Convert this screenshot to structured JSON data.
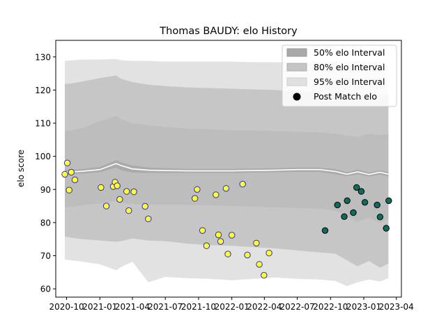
{
  "chart_data": {
    "type": "scatter",
    "title": "Thomas BAUDY: elo History",
    "xlabel": "",
    "ylabel": "elo score",
    "ylim": [
      57.5,
      135
    ],
    "xlim": [
      "2020-09-01",
      "2023-04-15"
    ],
    "yticks": [
      60,
      70,
      80,
      90,
      100,
      110,
      120,
      130
    ],
    "xticks": [
      "2020-10",
      "2021-01",
      "2021-04",
      "2021-07",
      "2021-10",
      "2022-01",
      "2022-04",
      "2022-07",
      "2022-10",
      "2023-01",
      "2023-04"
    ],
    "grid": false,
    "legend_position": "top-right",
    "legend": [
      {
        "label": "50% elo Interval",
        "color": "#a9a9a9"
      },
      {
        "label": "80% elo Interval",
        "color": "#c4c4c4"
      },
      {
        "label": "95% elo Interval",
        "color": "#e0e0e0"
      },
      {
        "label": "Post Match elo",
        "color": "#000000"
      }
    ],
    "bands": {
      "x": [
        "2020-09-26",
        "2020-10-15",
        "2020-11-15",
        "2021-01-01",
        "2021-02-15",
        "2021-03-01",
        "2021-04-01",
        "2021-05-15",
        "2021-07-01",
        "2021-09-01",
        "2021-11-01",
        "2022-01-01",
        "2022-03-01",
        "2022-05-01",
        "2022-07-01",
        "2022-09-01",
        "2022-10-15",
        "2022-11-15",
        "2022-12-15",
        "2023-01-15",
        "2023-02-15",
        "2023-03-10"
      ],
      "median": [
        95.2,
        95.3,
        95.5,
        96.0,
        97.8,
        97.2,
        96.2,
        95.8,
        95.7,
        95.6,
        95.6,
        95.6,
        95.7,
        95.8,
        96.0,
        96.0,
        95.4,
        94.6,
        95.3,
        94.5,
        95.2,
        94.6
      ],
      "p50_low": [
        94.5,
        94.7,
        94.8,
        95.2,
        96.6,
        95.8,
        95.1,
        95.0,
        95.0,
        95.0,
        95.0,
        95.0,
        95.1,
        95.2,
        95.3,
        95.3,
        94.6,
        94.0,
        94.6,
        93.9,
        94.5,
        93.9
      ],
      "p50_high": [
        96.0,
        96.0,
        96.2,
        96.8,
        98.8,
        98.2,
        97.2,
        96.6,
        96.4,
        96.2,
        96.2,
        96.2,
        96.3,
        96.4,
        96.6,
        96.6,
        96.1,
        95.2,
        96.0,
        95.1,
        95.8,
        95.2
      ],
      "p80_low": [
        84.5,
        84.8,
        85.2,
        85.8,
        86.4,
        86.0,
        85.6,
        85.4,
        85.4,
        85.3,
        85.2,
        85.0,
        84.8,
        84.6,
        84.4,
        84.2,
        83.6,
        82.0,
        80.2,
        81.6,
        79.8,
        81.2
      ],
      "p80_high": [
        107.6,
        107.8,
        108.6,
        110.6,
        112.2,
        111.2,
        110.0,
        109.4,
        108.8,
        108.4,
        108.2,
        107.8,
        107.8,
        107.6,
        107.4,
        107.2,
        106.8,
        106.2,
        105.8,
        106.8,
        106.4,
        106.8
      ],
      "p95_low": [
        75.8,
        75.4,
        75.0,
        74.6,
        74.2,
        74.4,
        75.2,
        74.6,
        74.4,
        73.6,
        73.2,
        73.0,
        72.6,
        72.2,
        71.6,
        71.0,
        70.6,
        68.6,
        66.8,
        68.4,
        66.4,
        67.6
      ],
      "p95_high": [
        121.8,
        122.0,
        122.6,
        123.6,
        124.4,
        123.4,
        122.4,
        121.6,
        121.2,
        120.8,
        120.6,
        120.4,
        120.2,
        120.0,
        119.6,
        119.4,
        119.0,
        118.6,
        118.2,
        118.8,
        118.4,
        118.6
      ],
      "p99_low": [
        68.8,
        68.6,
        68.2,
        67.4,
        65.6,
        66.6,
        68.2,
        62.0,
        63.6,
        63.2,
        63.0,
        62.6,
        63.0,
        63.4,
        63.0,
        62.8,
        62.4,
        60.8,
        62.0,
        62.8,
        62.2,
        63.2
      ],
      "p99_high": [
        128.8,
        129.0,
        129.2,
        129.2,
        129.4,
        129.0,
        128.8,
        128.8,
        128.6,
        128.6,
        128.6,
        128.6,
        128.4,
        128.4,
        128.2,
        128.2,
        128.0,
        127.6,
        127.8,
        128.0,
        127.6,
        127.8
      ]
    },
    "series": [
      {
        "name": "Post Match elo",
        "face_color": "#ffff33",
        "edge_color": "#3030a0",
        "points": [
          {
            "x": "2020-09-26",
            "y": 94.6
          },
          {
            "x": "2020-10-03",
            "y": 98.0
          },
          {
            "x": "2020-10-08",
            "y": 89.8
          },
          {
            "x": "2020-10-14",
            "y": 95.2
          },
          {
            "x": "2020-10-24",
            "y": 92.9
          },
          {
            "x": "2021-01-04",
            "y": 90.6
          },
          {
            "x": "2021-01-19",
            "y": 85.0
          },
          {
            "x": "2021-02-07",
            "y": 90.9
          },
          {
            "x": "2021-02-12",
            "y": 92.2
          },
          {
            "x": "2021-02-18",
            "y": 91.1
          },
          {
            "x": "2021-02-25",
            "y": 87.0
          },
          {
            "x": "2021-03-16",
            "y": 89.4
          },
          {
            "x": "2021-03-22",
            "y": 83.6
          },
          {
            "x": "2021-04-05",
            "y": 89.3
          },
          {
            "x": "2021-05-06",
            "y": 84.9
          },
          {
            "x": "2021-05-15",
            "y": 81.1
          },
          {
            "x": "2021-09-21",
            "y": 87.3
          },
          {
            "x": "2021-09-27",
            "y": 90.0
          },
          {
            "x": "2021-10-12",
            "y": 77.6
          },
          {
            "x": "2021-10-23",
            "y": 73.0
          },
          {
            "x": "2021-11-18",
            "y": 88.4
          },
          {
            "x": "2021-11-25",
            "y": 76.3
          },
          {
            "x": "2021-12-01",
            "y": 74.3
          },
          {
            "x": "2021-12-16",
            "y": 90.3
          },
          {
            "x": "2021-12-21",
            "y": 70.5
          },
          {
            "x": "2022-01-01",
            "y": 76.2
          },
          {
            "x": "2022-01-31",
            "y": 91.6
          },
          {
            "x": "2022-02-13",
            "y": 70.2
          },
          {
            "x": "2022-03-10",
            "y": 73.8
          },
          {
            "x": "2022-03-18",
            "y": 67.4
          },
          {
            "x": "2022-03-31",
            "y": 64.1
          },
          {
            "x": "2022-04-14",
            "y": 70.8
          }
        ]
      },
      {
        "name": "",
        "face_color": "#0f6b5a",
        "edge_color": "#000000",
        "points": [
          {
            "x": "2022-09-16",
            "y": 77.6
          },
          {
            "x": "2022-10-20",
            "y": 85.3
          },
          {
            "x": "2022-11-08",
            "y": 81.8
          },
          {
            "x": "2022-11-16",
            "y": 86.6
          },
          {
            "x": "2022-12-03",
            "y": 83.0
          },
          {
            "x": "2022-12-12",
            "y": 90.6
          },
          {
            "x": "2022-12-25",
            "y": 89.4
          },
          {
            "x": "2023-01-04",
            "y": 86.1
          },
          {
            "x": "2023-02-07",
            "y": 85.3
          },
          {
            "x": "2023-02-15",
            "y": 81.7
          },
          {
            "x": "2023-03-04",
            "y": 78.3
          },
          {
            "x": "2023-03-11",
            "y": 86.6
          }
        ]
      }
    ]
  }
}
